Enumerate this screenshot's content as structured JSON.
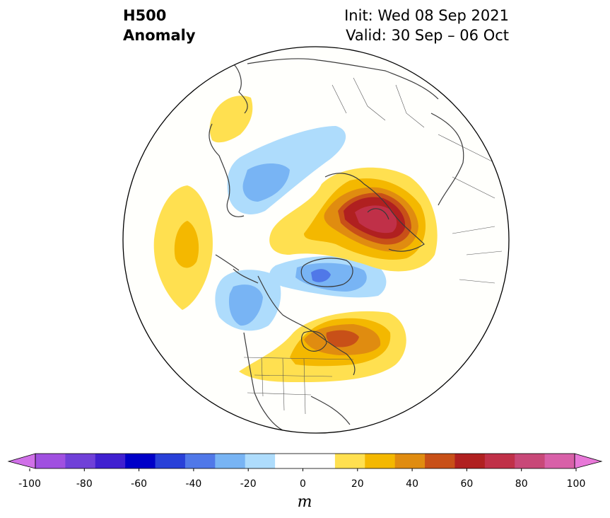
{
  "title": {
    "line1": "H500",
    "line2": "Anomaly",
    "init": "Init: Wed 08 Sep 2021",
    "valid": "Valid: 30 Sep – 06 Oct"
  },
  "colorbar": {
    "unit": "m",
    "ticks": [
      "-100",
      "-80",
      "-60",
      "-40",
      "-20",
      "0",
      "20",
      "40",
      "60",
      "80",
      "100"
    ],
    "colors": [
      "#a050e0",
      "#7040d8",
      "#4020d0",
      "#0000c8",
      "#2840d8",
      "#5078e8",
      "#78b4f4",
      "#aedcfc",
      "#ffffff",
      "#ffffff",
      "#ffe050",
      "#f4b800",
      "#e08c10",
      "#c85018",
      "#b02020",
      "#c03048",
      "#c84878",
      "#d860a8"
    ],
    "extend_low_color": "#d070e8",
    "extend_high_color": "#e878d8"
  },
  "map": {
    "projection": "north-polar-stereographic",
    "anomalies": [
      {
        "name": "alaska-ridge",
        "peak_m": 20
      },
      {
        "name": "north-pacific-ridge",
        "peak_m": 30
      },
      {
        "name": "siberia-trough",
        "peak_m": -30
      },
      {
        "name": "arctic-trough",
        "peak_m": -50
      },
      {
        "name": "gulf-of-alaska-trough",
        "peak_m": -30
      },
      {
        "name": "northern-europe-ridge",
        "peak_m": 70
      },
      {
        "name": "eastern-north-america-ridge",
        "peak_m": 50
      }
    ]
  }
}
